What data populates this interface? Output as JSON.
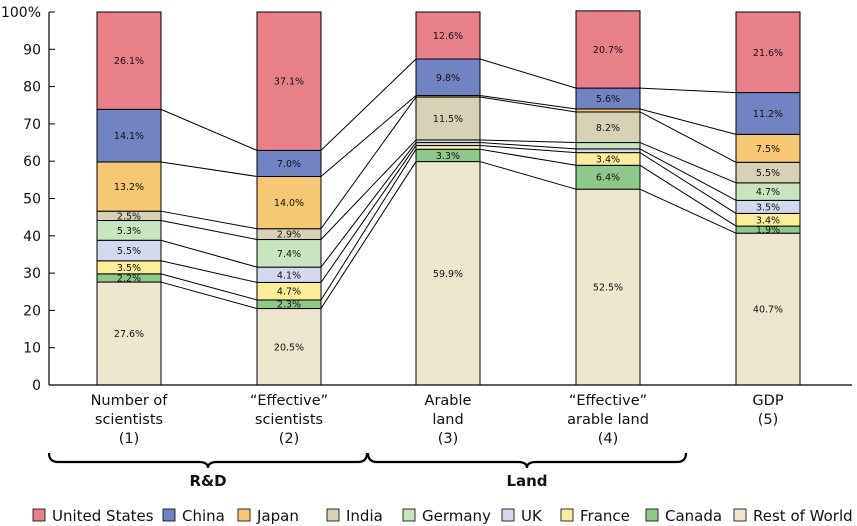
{
  "chart_data": {
    "type": "bar",
    "stacked": true,
    "ylim": [
      0,
      100
    ],
    "y_ticks": [
      "0",
      "10",
      "20",
      "30",
      "40",
      "50",
      "60",
      "70",
      "80",
      "90",
      "100%"
    ],
    "grid": false,
    "legend_position": "bottom",
    "categories": [
      [
        "Number of",
        "scientists",
        "(1)"
      ],
      [
        "“Effective”",
        "scientists",
        "(2)"
      ],
      [
        "Arable",
        "land",
        "(3)"
      ],
      [
        "“Effective”",
        "arable land",
        "(4)"
      ],
      [
        "GDP",
        "(5)"
      ]
    ],
    "groups": [
      {
        "label": "R&D",
        "from": 0,
        "to": 1
      },
      {
        "label": "Land",
        "from": 2,
        "to": 3
      }
    ],
    "series": [
      {
        "name": "Rest of World",
        "color": "#efe6cf",
        "values": [
          27.6,
          20.5,
          59.9,
          52.5,
          40.7
        ],
        "labels": [
          "27.6%",
          "20.5%",
          "59.9%",
          "52.5%",
          "40.7%"
        ]
      },
      {
        "name": "Canada",
        "color": "#8fc98a",
        "values": [
          2.2,
          2.3,
          3.3,
          6.4,
          1.9
        ],
        "labels": [
          "2.2%",
          "2.3%",
          "3.3%",
          "6.4%",
          "1.9%"
        ]
      },
      {
        "name": "France",
        "color": "#fbee9a",
        "values": [
          3.5,
          4.7,
          1.0,
          3.4,
          3.4
        ],
        "labels": [
          "3.5%",
          "4.7%",
          "",
          "3.4%",
          "3.4%"
        ]
      },
      {
        "name": "UK",
        "color": "#d4d9ef",
        "values": [
          5.5,
          4.1,
          0.8,
          1.0,
          3.5
        ],
        "labels": [
          "5.5%",
          "4.1%",
          "",
          "",
          "3.5%"
        ]
      },
      {
        "name": "Germany",
        "color": "#c8e5bf",
        "values": [
          5.3,
          7.4,
          0.7,
          1.7,
          4.7
        ],
        "labels": [
          "5.3%",
          "7.4%",
          "",
          "",
          "4.7%"
        ]
      },
      {
        "name": "India",
        "color": "#d7d2b6",
        "values": [
          2.5,
          2.9,
          11.5,
          8.2,
          5.5
        ],
        "labels": [
          "2.5%",
          "2.9%",
          "11.5%",
          "8.2%",
          "5.5%"
        ]
      },
      {
        "name": "Japan",
        "color": "#f6c873",
        "values": [
          13.2,
          14.0,
          0.4,
          0.8,
          7.5
        ],
        "labels": [
          "13.2%",
          "14.0%",
          "",
          "",
          "7.5%"
        ]
      },
      {
        "name": "China",
        "color": "#7283c4",
        "values": [
          14.1,
          7.0,
          9.8,
          5.6,
          11.2
        ],
        "labels": [
          "14.1%",
          "7.0%",
          "9.8%",
          "5.6%",
          "11.2%"
        ]
      },
      {
        "name": "United States",
        "color": "#e8808a",
        "values": [
          26.1,
          37.1,
          12.6,
          20.7,
          21.6
        ],
        "labels": [
          "26.1%",
          "37.1%",
          "12.6%",
          "20.7%",
          "21.6%"
        ]
      }
    ],
    "legend_order": [
      "United States",
      "China",
      "Japan",
      "India",
      "Germany",
      "UK",
      "France",
      "Canada",
      "Rest of World"
    ]
  }
}
